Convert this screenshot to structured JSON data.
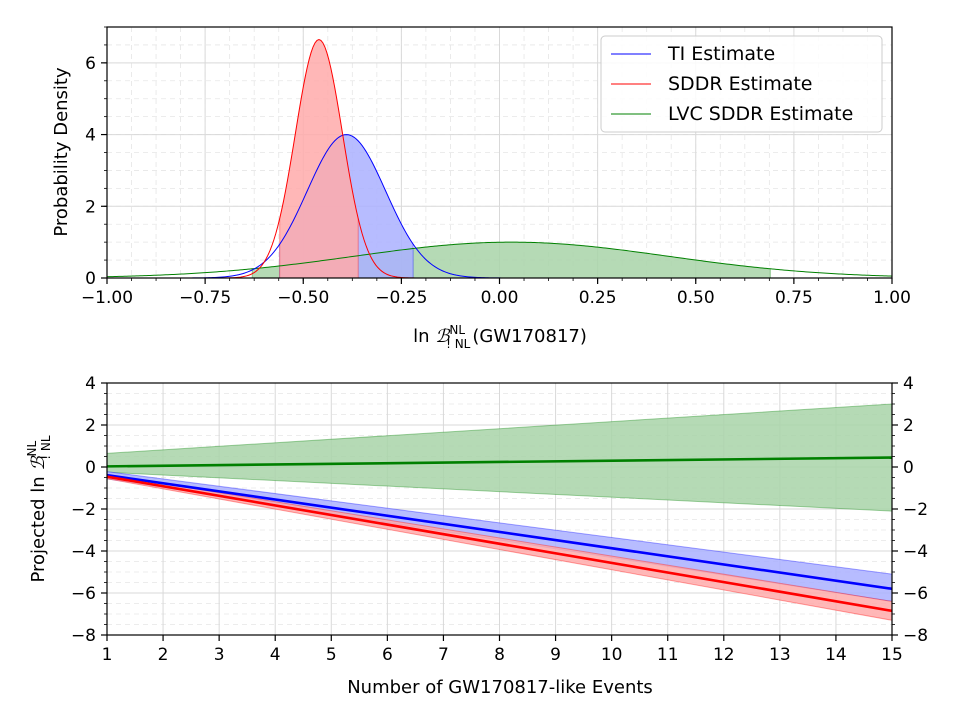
{
  "colors": {
    "ti": "#0000ff",
    "sddr": "#ff0000",
    "lvc": "#008000",
    "ti_fill": "#aab0ff",
    "sddr_fill": "#ffaaaa",
    "lvc_fill": "#a8d4a8"
  },
  "chart_data": [
    {
      "type": "area",
      "title": "",
      "xlabel": "ln ℬ^NL_!NL(GW170817)",
      "ylabel": "Probability Density",
      "xlim": [
        -1.0,
        1.0
      ],
      "ylim": [
        0,
        7
      ],
      "xticks": [
        "−1.00",
        "−0.75",
        "−0.50",
        "−0.25",
        "0.00",
        "0.25",
        "0.50",
        "0.75",
        "1.00"
      ],
      "yticks": [
        "0",
        "2",
        "4",
        "6"
      ],
      "grid": true,
      "legend_position": "top-right",
      "series": [
        {
          "name": "TI Estimate",
          "color": "ti",
          "fill": "ti_fill",
          "mean": -0.39,
          "sd": 0.1,
          "peak": 4.0,
          "shade_range": [
            -0.56,
            -0.22
          ]
        },
        {
          "name": "SDDR Estimate",
          "color": "sddr",
          "fill": "sddr_fill",
          "mean": -0.46,
          "sd": 0.06,
          "peak": 6.65,
          "shade_range": [
            -0.56,
            -0.36
          ]
        },
        {
          "name": "LVC SDDR Estimate",
          "color": "lvc",
          "fill": "lvc_fill",
          "mean": 0.03,
          "sd": 0.4,
          "peak": 1.0,
          "shade_range": [
            -0.63,
            0.69
          ]
        }
      ]
    },
    {
      "type": "line",
      "title": "",
      "xlabel": "Number of GW170817-like Events",
      "ylabel": "Projected ln ℬ^NL_!NL",
      "xlim": [
        1,
        15
      ],
      "ylim": [
        -8,
        4
      ],
      "xticks": [
        "1",
        "2",
        "3",
        "4",
        "5",
        "6",
        "7",
        "8",
        "9",
        "10",
        "11",
        "12",
        "13",
        "14",
        "15"
      ],
      "yticks": [
        "−8",
        "−6",
        "−4",
        "−2",
        "0",
        "2",
        "4"
      ],
      "grid": true,
      "series": [
        {
          "color": "lvc",
          "fill": "lvc_fill",
          "x": [
            1,
            15
          ],
          "y": [
            0.03,
            0.45
          ],
          "band_upper": [
            0.65,
            3.0
          ],
          "band_lower": [
            -0.25,
            -2.1
          ]
        },
        {
          "color": "ti",
          "fill": "ti_fill",
          "x": [
            1,
            15
          ],
          "y": [
            -0.39,
            -5.8
          ],
          "band_upper": [
            -0.22,
            -5.1
          ],
          "band_lower": [
            -0.56,
            -6.4
          ]
        },
        {
          "color": "sddr",
          "fill": "sddr_fill",
          "x": [
            1,
            15
          ],
          "y": [
            -0.46,
            -6.85
          ],
          "band_upper": [
            -0.36,
            -6.4
          ],
          "band_lower": [
            -0.56,
            -7.3
          ]
        }
      ]
    }
  ]
}
